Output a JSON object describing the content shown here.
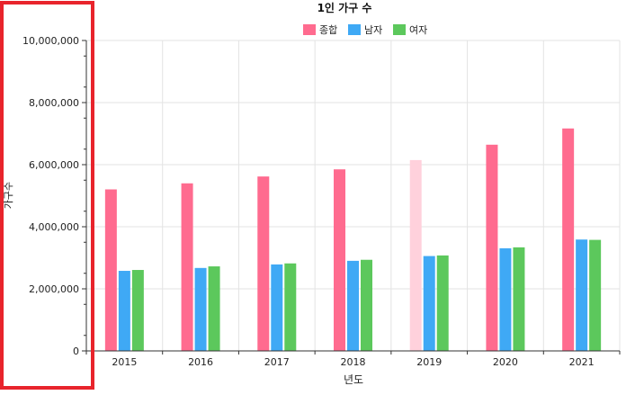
{
  "chart_data": {
    "type": "bar",
    "title": "1인 가구 수",
    "xlabel": "년도",
    "ylabel": "가구수",
    "categories": [
      "2015",
      "2016",
      "2017",
      "2018",
      "2019",
      "2020",
      "2021"
    ],
    "series": [
      {
        "name": "종합",
        "color": "#ff6b8f",
        "values": [
          5203000,
          5398000,
          5619000,
          5849000,
          6148000,
          6643000,
          7166000
        ],
        "highlight_index": 4,
        "highlight_color": "#ffd1dc"
      },
      {
        "name": "남자",
        "color": "#3fa9f5",
        "values": [
          2579000,
          2672000,
          2786000,
          2902000,
          3056000,
          3306000,
          3588000
        ]
      },
      {
        "name": "여자",
        "color": "#5cc85c",
        "values": [
          2608000,
          2723000,
          2819000,
          2935000,
          3075000,
          3336000,
          3577000
        ]
      }
    ],
    "ylim": [
      0,
      10000000
    ],
    "yticks": [
      "0",
      "2,000,000",
      "4,000,000",
      "6,000,000",
      "8,000,000",
      "10,000,000"
    ],
    "grid": true,
    "legend": "top-center"
  },
  "annotation": {
    "color": "#e8242c"
  }
}
